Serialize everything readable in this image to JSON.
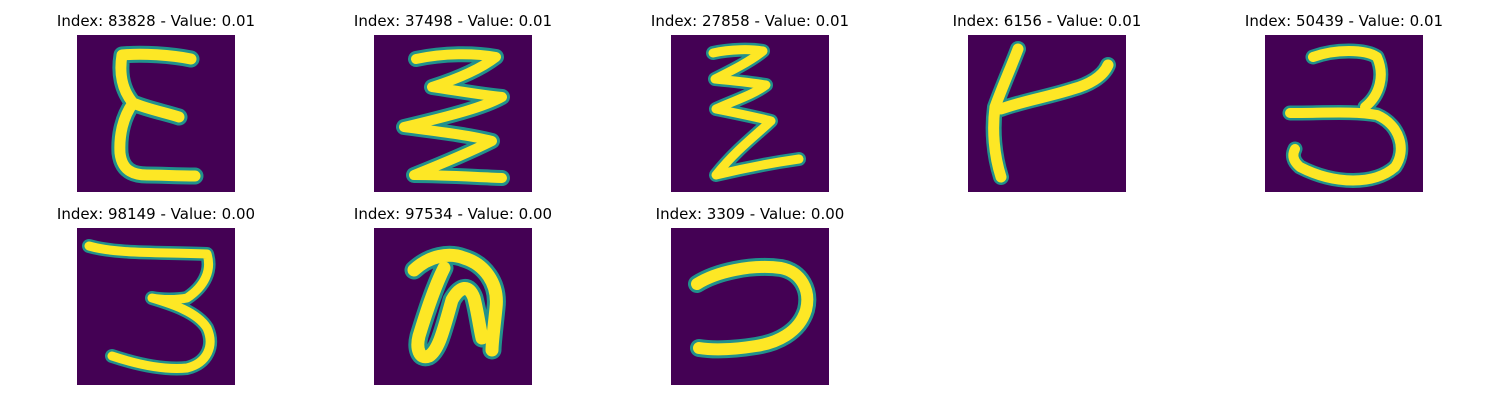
{
  "background_color": "#440154",
  "stroke_color": "#fde725",
  "edge_color": "#21918c",
  "tiles": [
    {
      "title": "Index: 83828 - Value: 0.01",
      "glyph": "epsilon"
    },
    {
      "title": "Index: 37498 - Value: 0.01",
      "glyph": "zigzag-wide"
    },
    {
      "title": "Index: 27858 - Value: 0.01",
      "glyph": "zigzag-narrow"
    },
    {
      "title": "Index: 6156 - Value: 0.01",
      "glyph": "t-shape"
    },
    {
      "title": "Index: 50439 - Value: 0.01",
      "glyph": "three"
    },
    {
      "title": "Index: 98149 - Value: 0.00",
      "glyph": "three-tall"
    },
    {
      "title": "Index: 97534 - Value: 0.00",
      "glyph": "claw"
    },
    {
      "title": "Index: 3309 - Value: 0.00",
      "glyph": "hook"
    }
  ]
}
